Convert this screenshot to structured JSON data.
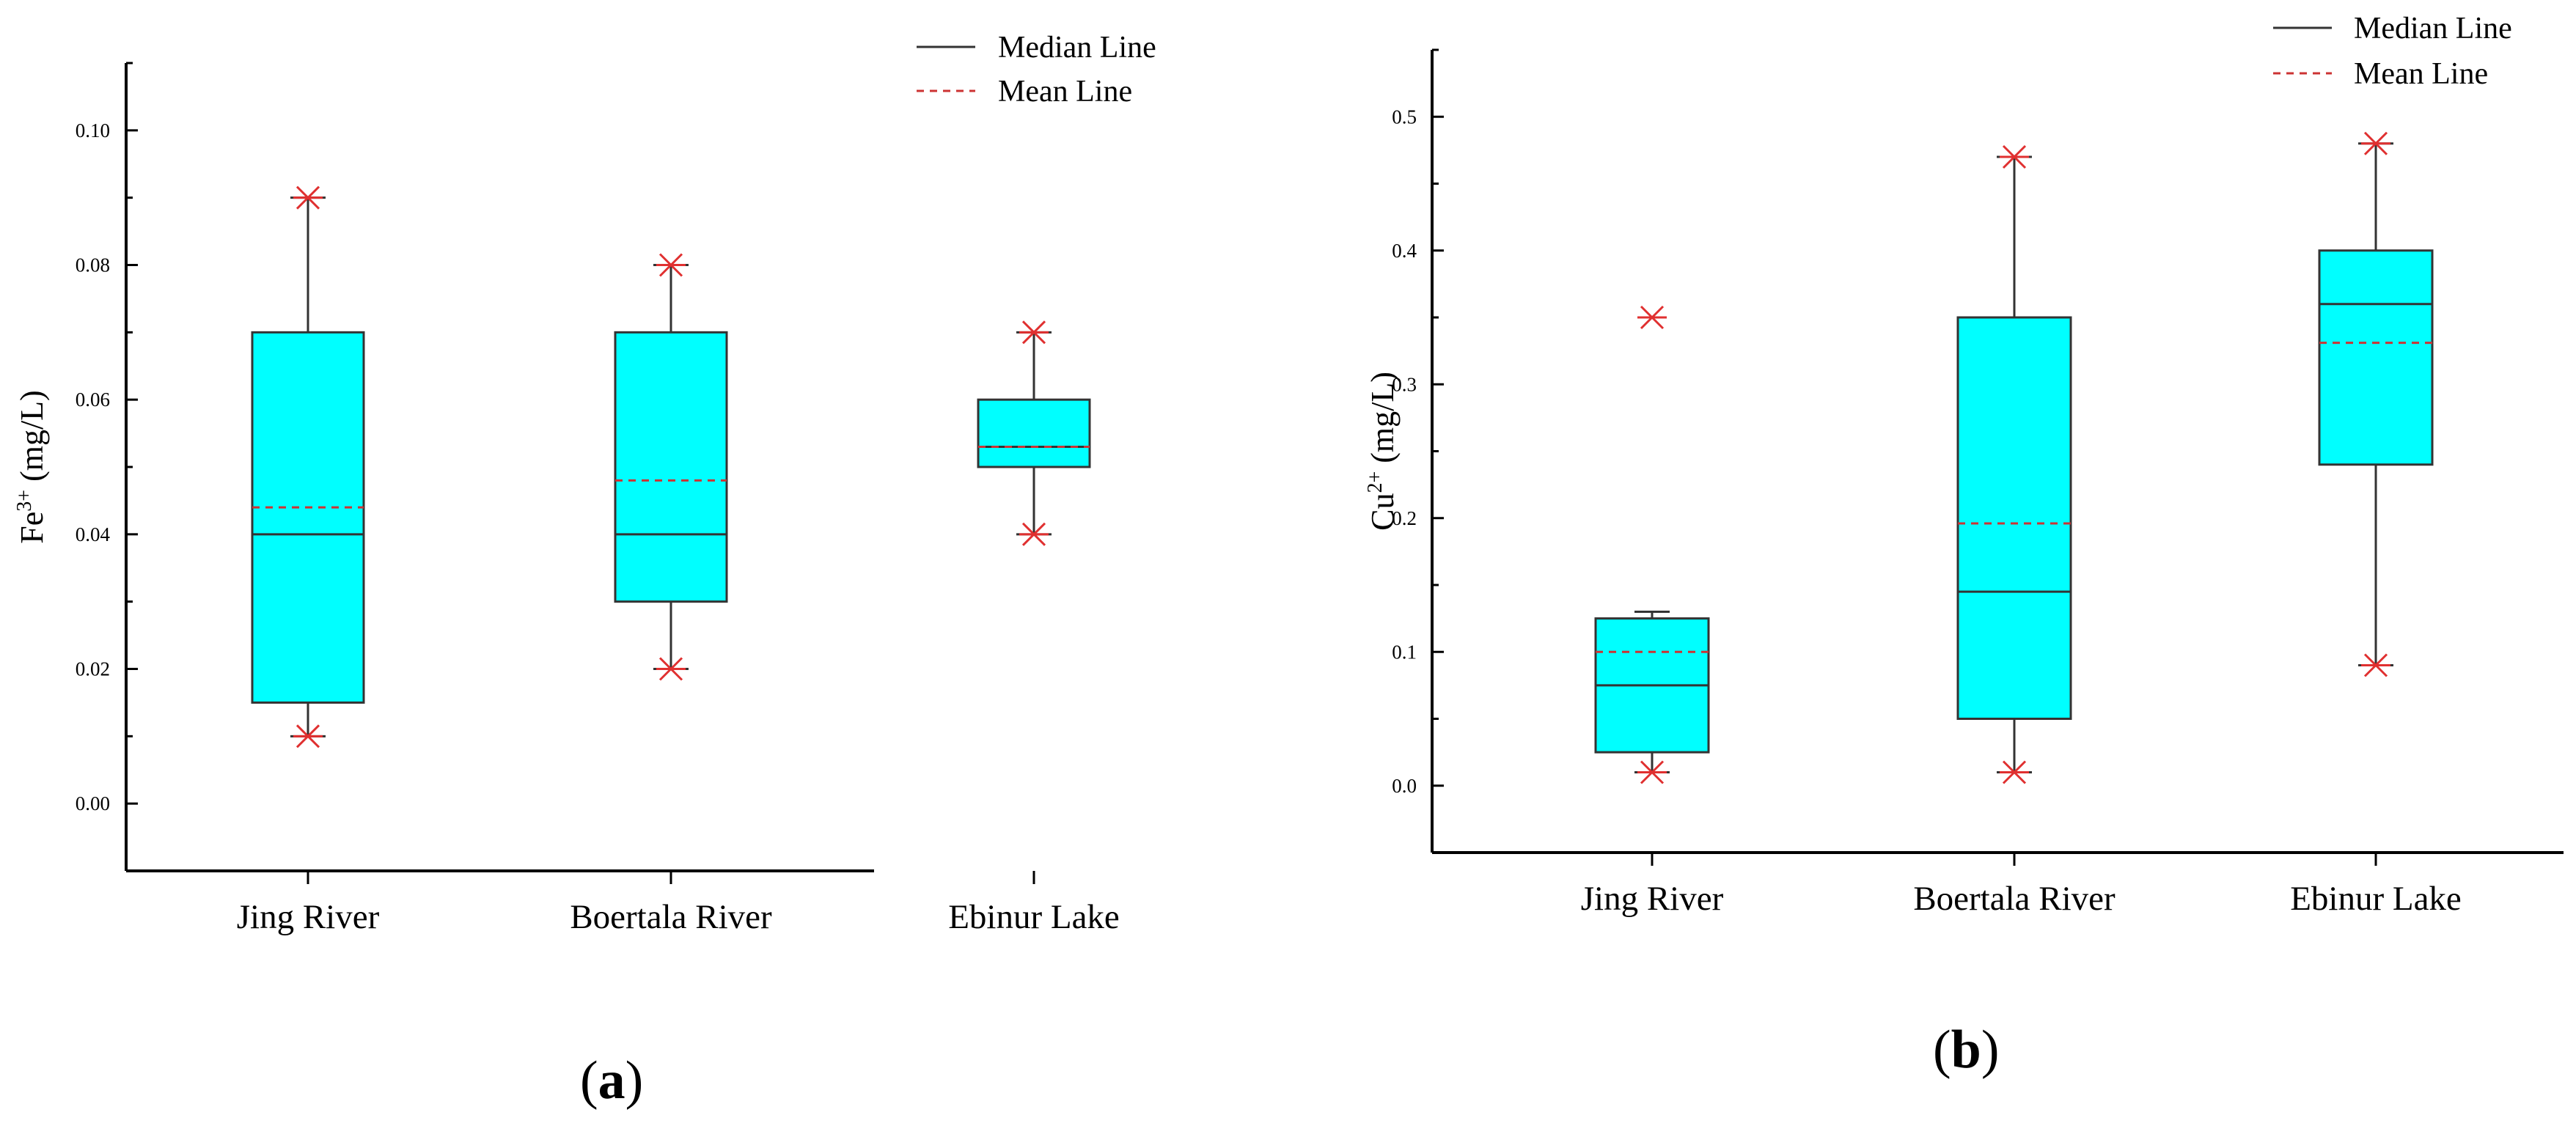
{
  "chart_data": [
    {
      "type": "box",
      "panel": "(a)",
      "ylabel": "Fe3+ (mg/L)",
      "ylabel_base": "Fe",
      "ylabel_sup": "3+",
      "ylabel_unit": " (mg/L)",
      "ylim": [
        -0.01,
        0.11
      ],
      "yticks": [
        "0.00",
        "0.02",
        "0.04",
        "0.06",
        "0.08",
        "0.10"
      ],
      "categories": [
        "Jing River",
        "Boertala River",
        "Ebinur Lake"
      ],
      "boxes": [
        {
          "category": "Jing River",
          "min": 0.01,
          "q1": 0.015,
          "median": 0.04,
          "mean": 0.044,
          "q3": 0.07,
          "max": 0.09,
          "whisker_low": 0.01,
          "whisker_high": 0.09,
          "markers": [
            0.01,
            0.09
          ]
        },
        {
          "category": "Boertala River",
          "min": 0.02,
          "q1": 0.03,
          "median": 0.04,
          "mean": 0.048,
          "q3": 0.07,
          "max": 0.08,
          "whisker_low": 0.02,
          "whisker_high": 0.08,
          "markers": [
            0.02,
            0.08
          ]
        },
        {
          "category": "Ebinur Lake",
          "min": 0.04,
          "q1": 0.05,
          "median": 0.053,
          "mean": 0.053,
          "q3": 0.06,
          "max": 0.07,
          "whisker_low": 0.04,
          "whisker_high": 0.07,
          "markers": [
            0.04,
            0.07
          ]
        }
      ],
      "legend": [
        {
          "label": "Median Line",
          "style": "solid"
        },
        {
          "label": "Mean Line",
          "style": "dashed"
        }
      ],
      "legend_position": "top-right",
      "grid": false
    },
    {
      "type": "box",
      "panel": "(b)",
      "ylabel": "Cu2+ (mg/L)",
      "ylabel_base": "Cu",
      "ylabel_sup": "2+",
      "ylabel_unit": " (mg/L)",
      "ylim": [
        -0.05,
        0.55
      ],
      "yticks": [
        "0.0",
        "0.1",
        "0.2",
        "0.3",
        "0.4",
        "0.5"
      ],
      "categories": [
        "Jing River",
        "Boertala River",
        "Ebinur Lake"
      ],
      "boxes": [
        {
          "category": "Jing River",
          "min": 0.01,
          "q1": 0.025,
          "median": 0.075,
          "mean": 0.1,
          "q3": 0.125,
          "max": 0.35,
          "whisker_low": 0.01,
          "whisker_high": 0.13,
          "markers": [
            0.01,
            0.35
          ]
        },
        {
          "category": "Boertala River",
          "min": 0.01,
          "q1": 0.05,
          "median": 0.145,
          "mean": 0.196,
          "q3": 0.35,
          "max": 0.47,
          "whisker_low": 0.01,
          "whisker_high": 0.47,
          "markers": [
            0.01,
            0.47
          ]
        },
        {
          "category": "Ebinur Lake",
          "min": 0.09,
          "q1": 0.24,
          "median": 0.36,
          "mean": 0.331,
          "q3": 0.4,
          "max": 0.48,
          "whisker_low": 0.09,
          "whisker_high": 0.48,
          "markers": [
            0.09,
            0.48
          ]
        }
      ],
      "legend": [
        {
          "label": "Median Line",
          "style": "solid"
        },
        {
          "label": "Mean Line",
          "style": "dashed"
        }
      ],
      "legend_position": "top-right",
      "grid": false
    }
  ],
  "colors": {
    "box_fill": "#00ffff",
    "box_stroke": "#333333",
    "median": "#333333",
    "mean": "#cc3333",
    "marker": "#e03030",
    "axis": "#000000"
  },
  "panel_labels": {
    "a": {
      "open": "(",
      "letter": "a",
      "close": ")"
    },
    "b": {
      "open": "(",
      "letter": "b",
      "close": ")"
    }
  }
}
